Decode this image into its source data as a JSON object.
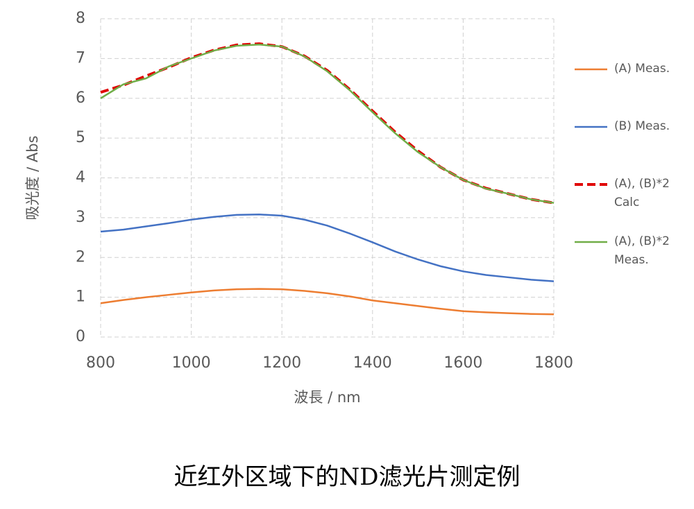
{
  "chart_data": {
    "type": "line",
    "y_label": "吸光度 / Abs",
    "x_label": "波長 / nm",
    "caption": "近红外区域下的ND滤光片测定例",
    "x": [
      800,
      850,
      900,
      950,
      1000,
      1050,
      1100,
      1150,
      1200,
      1250,
      1300,
      1350,
      1400,
      1450,
      1500,
      1550,
      1600,
      1650,
      1700,
      1750,
      1800
    ],
    "series": [
      {
        "name": "(A) Meas.",
        "color": "#ED7D31",
        "style": "solid",
        "values": [
          0.85,
          0.93,
          1.0,
          1.06,
          1.12,
          1.17,
          1.2,
          1.21,
          1.2,
          1.16,
          1.1,
          1.02,
          0.92,
          0.85,
          0.78,
          0.71,
          0.65,
          0.62,
          0.6,
          0.58,
          0.57
        ]
      },
      {
        "name": "(B) Meas.",
        "color": "#4472C4",
        "style": "solid",
        "values": [
          2.65,
          2.7,
          2.78,
          2.86,
          2.95,
          3.02,
          3.07,
          3.08,
          3.05,
          2.95,
          2.8,
          2.6,
          2.38,
          2.15,
          1.95,
          1.78,
          1.65,
          1.56,
          1.5,
          1.44,
          1.4
        ]
      },
      {
        "name": "(A), (B)*2 Calc",
        "color": "#E00000",
        "style": "dashed",
        "values": [
          6.15,
          6.33,
          6.56,
          6.78,
          7.02,
          7.21,
          7.34,
          7.37,
          7.3,
          7.06,
          6.7,
          6.22,
          5.68,
          5.15,
          4.68,
          4.27,
          3.95,
          3.74,
          3.6,
          3.46,
          3.37
        ]
      },
      {
        "name": "(A), (B)*2 Meas.",
        "color": "#70AD47",
        "style": "solid",
        "values": [
          6.0,
          6.35,
          6.5,
          6.8,
          7.0,
          7.2,
          7.32,
          7.35,
          7.3,
          7.05,
          6.68,
          6.2,
          5.65,
          5.12,
          4.65,
          4.27,
          3.95,
          3.73,
          3.6,
          3.46,
          3.37
        ]
      }
    ],
    "xlim": [
      800,
      1800
    ],
    "xticks": [
      800,
      1000,
      1200,
      1400,
      1600,
      1800
    ],
    "ylim": [
      0,
      8
    ],
    "yticks": [
      0,
      1,
      2,
      3,
      4,
      5,
      6,
      7,
      8
    ],
    "grid": true,
    "legend": "right"
  }
}
